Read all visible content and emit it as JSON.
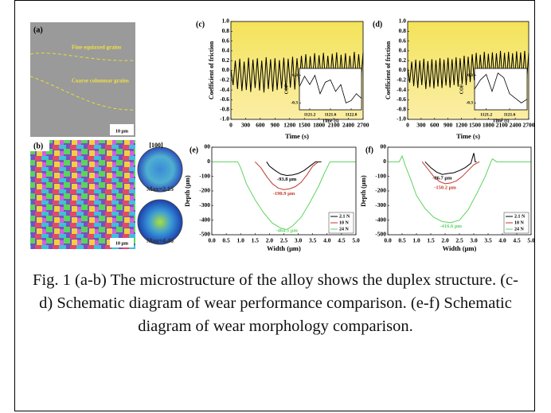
{
  "micrographs": {
    "a": {
      "panel": "(a)",
      "upper_label": "Fine equiaxed grains",
      "lower_label": "Coarse columnar grains",
      "scale": "10 μm"
    },
    "b": {
      "panel": "(b)",
      "pole": "[100]",
      "max_upper": "Max=2.15",
      "max_lower": "Max=4.46",
      "scale": "10 μm"
    }
  },
  "chart_data": [
    {
      "type": "line",
      "panel": "(c)",
      "xlabel": "Time (s)",
      "ylabel": "Coefficient of friction",
      "color": "#000000",
      "xlim": [
        0,
        2700
      ],
      "xticks": [
        0,
        300,
        600,
        900,
        1200,
        1500,
        1800,
        2100,
        2400,
        2700
      ],
      "ylim": [
        -1.0,
        1.0
      ],
      "yticks": [
        {
          "value": -1.0,
          "label": "-1.0"
        },
        -0.8,
        -0.6,
        -0.4,
        -0.2,
        {
          "value": 0,
          "label": "0.0"
        },
        0.2,
        0.4,
        0.6,
        0.8,
        {
          "value": 1.0,
          "label": "1.0"
        }
      ],
      "x": [
        0,
        45,
        90,
        135,
        180,
        225,
        270,
        315,
        360,
        405,
        450,
        495,
        540,
        585,
        630,
        675,
        720,
        765,
        810,
        855,
        900,
        945,
        990,
        1035,
        1080,
        1125,
        1170,
        1215,
        1260,
        1305,
        1350,
        1395,
        1440,
        1485,
        1530,
        1575,
        1620,
        1665,
        1710,
        1755,
        1800,
        1845,
        1890,
        1935,
        1980,
        2025,
        2070,
        2115,
        2160,
        2205,
        2250,
        2295,
        2340,
        2385,
        2430,
        2475,
        2520,
        2565,
        2610,
        2655,
        2700
      ],
      "values": [
        0.02,
        -0.3,
        0.2,
        -0.38,
        0.24,
        -0.42,
        0.18,
        -0.4,
        0.26,
        -0.44,
        0.22,
        -0.36,
        0.25,
        -0.41,
        0.2,
        -0.45,
        0.27,
        -0.38,
        0.23,
        -0.43,
        0.25,
        -0.4,
        0.21,
        -0.37,
        0.26,
        -0.42,
        0.24,
        -0.35,
        0.28,
        -0.39,
        0.25,
        -0.3,
        0.3,
        -0.22,
        0.33,
        -0.25,
        0.29,
        -0.2,
        0.35,
        -0.24,
        0.31,
        -0.18,
        0.36,
        -0.23,
        0.3,
        -0.21,
        0.34,
        -0.19,
        0.37,
        -0.25,
        0.32,
        -0.2,
        0.35,
        -0.22,
        0.3,
        -0.17,
        0.38,
        -0.21,
        0.33,
        -0.2,
        0.36
      ],
      "inset": {
        "type": "line",
        "xlabel": "Time (s)",
        "ylabel": "COF",
        "color": "#000000",
        "xlim": [
          1121.0,
          1122.2
        ],
        "xticks": [
          1121.2,
          1121.6,
          {
            "value": 1122.0,
            "label": "1122.0"
          }
        ],
        "ylim": [
          -0.45,
          0.45
        ],
        "yticks": [
          -0.3,
          0.3
        ],
        "x": [
          1121.0,
          1121.1,
          1121.2,
          1121.3,
          1121.4,
          1121.5,
          1121.6,
          1121.7,
          1121.8,
          1121.9,
          1122.0,
          1122.1,
          1122.2
        ],
        "values": [
          0.05,
          0.28,
          0.1,
          0.3,
          -0.1,
          0.15,
          0.2,
          -0.05,
          0.1,
          -0.3,
          -0.25,
          -0.1,
          -0.2
        ]
      }
    },
    {
      "type": "line",
      "panel": "(d)",
      "xlabel": "Time (s)",
      "ylabel": "Coefficient of friction",
      "color": "#000000",
      "xlim": [
        0,
        2700
      ],
      "xticks": [
        0,
        300,
        600,
        900,
        1200,
        1500,
        1800,
        2100,
        2400,
        2700
      ],
      "ylim": [
        -1.0,
        1.0
      ],
      "yticks": [
        {
          "value": -1.0,
          "label": "-1.0"
        },
        -0.8,
        -0.6,
        -0.4,
        -0.2,
        {
          "value": 0,
          "label": "0.0"
        },
        0.2,
        0.4,
        0.6,
        0.8,
        {
          "value": 1.0,
          "label": "1.0"
        }
      ],
      "x": [
        0,
        45,
        90,
        135,
        180,
        225,
        270,
        315,
        360,
        405,
        450,
        495,
        540,
        585,
        630,
        675,
        720,
        765,
        810,
        855,
        900,
        945,
        990,
        1035,
        1080,
        1125,
        1170,
        1215,
        1260,
        1305,
        1350,
        1395,
        1440,
        1485,
        1530,
        1575,
        1620,
        1665,
        1710,
        1755,
        1800,
        1845,
        1890,
        1935,
        1980,
        2025,
        2070,
        2115,
        2160,
        2205,
        2250,
        2295,
        2340,
        2385,
        2430,
        2475,
        2520,
        2565,
        2610,
        2655,
        2700
      ],
      "values": [
        0.05,
        -0.25,
        0.18,
        -0.32,
        0.22,
        -0.36,
        0.2,
        -0.3,
        0.24,
        -0.38,
        0.19,
        -0.34,
        0.23,
        -0.37,
        0.21,
        -0.33,
        0.25,
        -0.36,
        0.22,
        -0.31,
        0.26,
        -0.35,
        0.23,
        -0.3,
        0.27,
        -0.33,
        0.25,
        -0.28,
        0.3,
        -0.3,
        0.28,
        -0.24,
        0.33,
        -0.2,
        0.36,
        -0.22,
        0.32,
        -0.18,
        0.38,
        -0.21,
        0.34,
        -0.17,
        0.37,
        -0.2,
        0.35,
        -0.16,
        0.4,
        -0.19,
        0.36,
        -0.2,
        0.38,
        -0.18,
        0.35,
        -0.21,
        0.39,
        -0.17,
        0.37,
        -0.19,
        0.4,
        -0.2,
        0.36
      ],
      "inset": {
        "type": "line",
        "xlabel": "Time (s)",
        "ylabel": "COF",
        "color": "#000000",
        "xlim": [
          1121.0,
          1121.9
        ],
        "xticks": [
          1121.2,
          1121.6
        ],
        "ylim": [
          -0.45,
          0.45
        ],
        "yticks": [
          -0.3,
          0.3
        ],
        "x": [
          1121.0,
          1121.1,
          1121.2,
          1121.3,
          1121.4,
          1121.5,
          1121.6,
          1121.7,
          1121.8,
          1121.9
        ],
        "values": [
          0.0,
          0.2,
          0.32,
          -0.05,
          0.35,
          0.25,
          -0.1,
          -0.2,
          -0.3,
          -0.22
        ]
      }
    },
    {
      "type": "line",
      "panel": "(e)",
      "xlabel": "Width (μm)",
      "ylabel": "Depth (μm)",
      "legend": "lower right",
      "xlim": [
        0,
        5
      ],
      "xticks": [
        {
          "value": 0,
          "label": "0.0"
        },
        0.5,
        {
          "value": 1,
          "label": "1.0"
        },
        1.5,
        {
          "value": 2,
          "label": "2.0"
        },
        2.5,
        {
          "value": 3,
          "label": "3.0"
        },
        3.5,
        {
          "value": 4,
          "label": "4.0"
        },
        4.5,
        {
          "value": 5,
          "label": "5.0"
        }
      ],
      "ylim": [
        -500,
        100
      ],
      "yticks": [
        -500,
        -400,
        -300,
        -200,
        -100,
        0,
        100
      ],
      "series": [
        {
          "name": "2.1 N",
          "color": "#000000",
          "annotation": "-93.8 μm",
          "x": [
            1.9,
            2.0,
            2.2,
            2.4,
            2.6,
            2.8,
            3.0,
            3.2,
            3.4,
            3.6,
            3.8
          ],
          "values": [
            0,
            -30,
            -60,
            -85,
            -93.8,
            -90,
            -80,
            -60,
            -30,
            0,
            0
          ]
        },
        {
          "name": "10 N",
          "color": "#c0392b",
          "annotation": "-190.9 μm",
          "x": [
            1.5,
            1.7,
            1.9,
            2.1,
            2.3,
            2.5,
            2.7,
            2.9,
            3.1,
            3.3,
            3.5,
            3.7
          ],
          "values": [
            0,
            -40,
            -100,
            -150,
            -180,
            -190.9,
            -185,
            -170,
            -140,
            -90,
            -30,
            0
          ]
        },
        {
          "name": "24 N",
          "color": "#5fd35f",
          "annotation": "-464.5 μm",
          "x": [
            0,
            0.5,
            0.9,
            1.0,
            1.2,
            1.5,
            1.8,
            2.1,
            2.4,
            2.6,
            2.8,
            3.1,
            3.4,
            3.7,
            3.9,
            4.1,
            4.5,
            5.0
          ],
          "values": [
            0,
            0,
            0,
            -40,
            -150,
            -260,
            -350,
            -420,
            -455,
            -464.5,
            -440,
            -380,
            -280,
            -170,
            -80,
            0,
            0,
            0
          ]
        }
      ]
    },
    {
      "type": "line",
      "panel": "(f)",
      "xlabel": "Width (μm)",
      "ylabel": "Depth (μm)",
      "legend": "lower right",
      "xlim": [
        0,
        5
      ],
      "xticks": [
        {
          "value": 0,
          "label": "0.0"
        },
        0.5,
        {
          "value": 1,
          "label": "1.0"
        },
        1.5,
        {
          "value": 2,
          "label": "2.0"
        },
        2.5,
        {
          "value": 3,
          "label": "3.0"
        },
        3.5,
        {
          "value": 4,
          "label": "4.0"
        },
        4.5,
        {
          "value": 5,
          "label": "5.0"
        }
      ],
      "ylim": [
        -500,
        100
      ],
      "yticks": [
        -500,
        -400,
        -300,
        -200,
        -100,
        0,
        100
      ],
      "series": [
        {
          "name": "2.1 N",
          "color": "#000000",
          "annotation": "-86.7 μm",
          "x": [
            1.3,
            1.5,
            1.7,
            1.9,
            2.1,
            2.3,
            2.5,
            2.7,
            2.9,
            3.0,
            3.05,
            3.1
          ],
          "values": [
            0,
            -40,
            -70,
            -86.7,
            -80,
            -75,
            -60,
            -40,
            -10,
            60,
            0,
            0
          ]
        },
        {
          "name": "10 N",
          "color": "#c0392b",
          "annotation": "-150.2 μm",
          "x": [
            1.2,
            1.4,
            1.6,
            1.8,
            2.0,
            2.2,
            2.4,
            2.6,
            2.8,
            3.0,
            3.2
          ],
          "values": [
            0,
            -50,
            -100,
            -135,
            -150.2,
            -145,
            -130,
            -100,
            -60,
            -20,
            0
          ]
        },
        {
          "name": "24 N",
          "color": "#5fd35f",
          "annotation": "-416.6 μm",
          "x": [
            0,
            0.4,
            0.5,
            0.6,
            0.8,
            1.0,
            1.3,
            1.6,
            1.9,
            2.2,
            2.5,
            2.8,
            3.1,
            3.4,
            3.6,
            3.65,
            3.8,
            4.2,
            5.0
          ],
          "values": [
            0,
            0,
            40,
            -20,
            -120,
            -230,
            -320,
            -380,
            -410,
            -416.6,
            -400,
            -330,
            -220,
            -100,
            0,
            20,
            0,
            0,
            0
          ]
        }
      ]
    }
  ],
  "caption": "Fig. 1 (a-b) The microstructure of the alloy shows the duplex structure. (c-d) Schematic diagram of wear performance comparison. (e-f) Schematic diagram of wear morphology comparison."
}
